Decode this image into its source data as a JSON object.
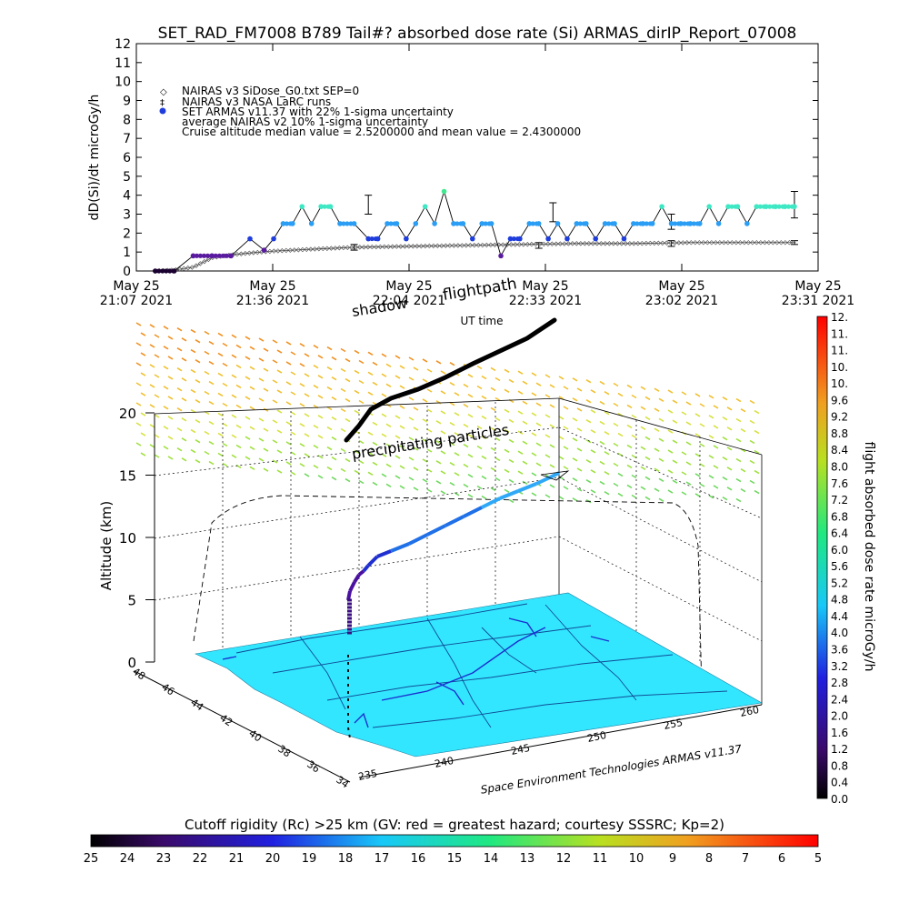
{
  "title": "SET_RAD_FM7008  B789 Tail#? absorbed dose rate (Si) ARMAS_dirIP_Report_07008",
  "top_chart": {
    "ylabel": "dD(Si)/dt microGy/h",
    "xlabel": "UT time",
    "yticks": [
      "0",
      "1",
      "2",
      "3",
      "4",
      "5",
      "6",
      "7",
      "8",
      "9",
      "10",
      "11",
      "12"
    ],
    "xticks": [
      {
        "date": "May 25",
        "time": "21:07 2021"
      },
      {
        "date": "May 25",
        "time": "21:36 2021"
      },
      {
        "date": "May 25",
        "time": "22:04 2021"
      },
      {
        "date": "May 25",
        "time": "22:33 2021"
      },
      {
        "date": "May 25",
        "time": "23:02 2021"
      },
      {
        "date": "May 25",
        "time": "23:31 2021"
      }
    ],
    "legend": [
      "NAIRAS v3 SiDose_G0.txt SEP=0",
      "NAIRAS v3 NASA LaRC runs",
      "SET ARMAS v11.37 with 22% 1-sigma uncertainty",
      "average NAIRAS v2 10% 1-sigma uncertainty",
      "Cruise altitude median value =  2.5200000 and mean value =  2.4300000"
    ]
  },
  "chart_data": [
    {
      "type": "line",
      "title": "SET_RAD_FM7008  B789 Tail#? absorbed dose rate (Si) ARMAS_dirIP_Report_07008",
      "xlabel": "UT time",
      "ylabel": "dD(Si)/dt microGy/h",
      "ylim": [
        0,
        12
      ],
      "xlim": [
        "21:07",
        "23:31"
      ],
      "series": [
        {
          "name": "SET ARMAS v11.37 with 22% 1-sigma uncertainty",
          "x": [
            "21:11",
            "21:15",
            "21:19",
            "21:23",
            "21:27",
            "21:31",
            "21:34",
            "21:36",
            "21:38",
            "21:40",
            "21:42",
            "21:44",
            "21:46",
            "21:48",
            "21:50",
            "21:53",
            "21:56",
            "21:58",
            "22:00",
            "22:02",
            "22:04",
            "22:06",
            "22:08",
            "22:10",
            "22:12",
            "22:14",
            "22:16",
            "22:18",
            "22:20",
            "22:22",
            "22:24",
            "22:26",
            "22:28",
            "22:30",
            "22:32",
            "22:34",
            "22:36",
            "22:38",
            "22:40",
            "22:42",
            "22:44",
            "22:46",
            "22:48",
            "22:50",
            "22:52",
            "22:54",
            "22:56",
            "22:58",
            "23:00",
            "23:02",
            "23:04",
            "23:06",
            "23:08",
            "23:10",
            "23:12",
            "23:14",
            "23:16",
            "23:18",
            "23:20",
            "23:22",
            "23:24",
            "23:26"
          ],
          "values": [
            0,
            0,
            0.8,
            0.8,
            0.8,
            1.7,
            1.1,
            1.7,
            2.5,
            2.5,
            3.4,
            2.5,
            3.4,
            3.4,
            2.5,
            2.5,
            1.7,
            1.7,
            2.5,
            2.5,
            1.7,
            2.5,
            3.4,
            2.5,
            4.2,
            2.5,
            2.5,
            1.7,
            2.5,
            2.5,
            0.8,
            1.7,
            1.7,
            2.5,
            2.5,
            1.7,
            2.5,
            1.7,
            2.5,
            2.5,
            1.7,
            2.5,
            2.5,
            1.7,
            2.5,
            2.5,
            2.5,
            3.4,
            2.5,
            2.5,
            2.5,
            2.5,
            3.4,
            2.5,
            3.4,
            3.4,
            2.5,
            3.4,
            3.4,
            3.4,
            3.4,
            3.4
          ]
        },
        {
          "name": "NAIRAS v3 SiDose_G0.txt SEP=0",
          "x": [
            "21:11",
            "21:15",
            "21:19",
            "21:23",
            "21:27",
            "21:31",
            "21:36",
            "21:44",
            "21:53",
            "22:04",
            "22:16",
            "22:28",
            "22:40",
            "22:52",
            "23:04",
            "23:16",
            "23:26"
          ],
          "values": [
            0,
            0.05,
            0.2,
            0.7,
            0.85,
            0.95,
            1.05,
            1.15,
            1.25,
            1.3,
            1.35,
            1.4,
            1.45,
            1.45,
            1.5,
            1.5,
            1.5
          ]
        }
      ]
    },
    {
      "type": "scatter",
      "title": "",
      "ylabel": "Altitude (km)",
      "zticks": [
        0,
        5,
        10,
        15,
        20
      ],
      "lat_ticks": [
        34,
        36,
        38,
        40,
        42,
        44,
        46,
        48
      ],
      "lon_ticks": [
        235,
        240,
        245,
        250,
        255,
        260
      ],
      "annotations": [
        "shadow",
        "flightpath",
        "precipitating particles"
      ],
      "colorbar_label": "flight absorbed dose rate microGy/h",
      "colorbar_ticks": [
        "0.0",
        "0.4",
        "0.8",
        "1.2",
        "1.6",
        "2.0",
        "2.4",
        "2.8",
        "3.2",
        "3.6",
        "4.0",
        "4.4",
        "4.8",
        "5.2",
        "5.6",
        "6.0",
        "6.4",
        "6.8",
        "7.2",
        "7.6",
        "8.0",
        "8.4",
        "8.8",
        "9.2",
        "9.6",
        "10.",
        "10.",
        "11.",
        "11.",
        "12."
      ],
      "footer": "Space Environment Technologies ARMAS v11.37"
    },
    {
      "type": "heatmap",
      "title": "Cutoff rigidity (Rc) >25 km (GV: red = greatest hazard; courtesy SSSRC; Kp=2)",
      "ticks": [
        "25",
        "24",
        "23",
        "22",
        "21",
        "20",
        "19",
        "18",
        "17",
        "16",
        "15",
        "14",
        "13",
        "12",
        "11",
        "10",
        "9",
        "8",
        "7",
        "6",
        "5"
      ]
    }
  ],
  "colors": {
    "armas_dark": "#1e3ddc",
    "armas_mid": "#2a9df4",
    "armas_light": "#3ee8c4",
    "armas_low": "#5a1aa0",
    "map": "#33e6ff"
  }
}
